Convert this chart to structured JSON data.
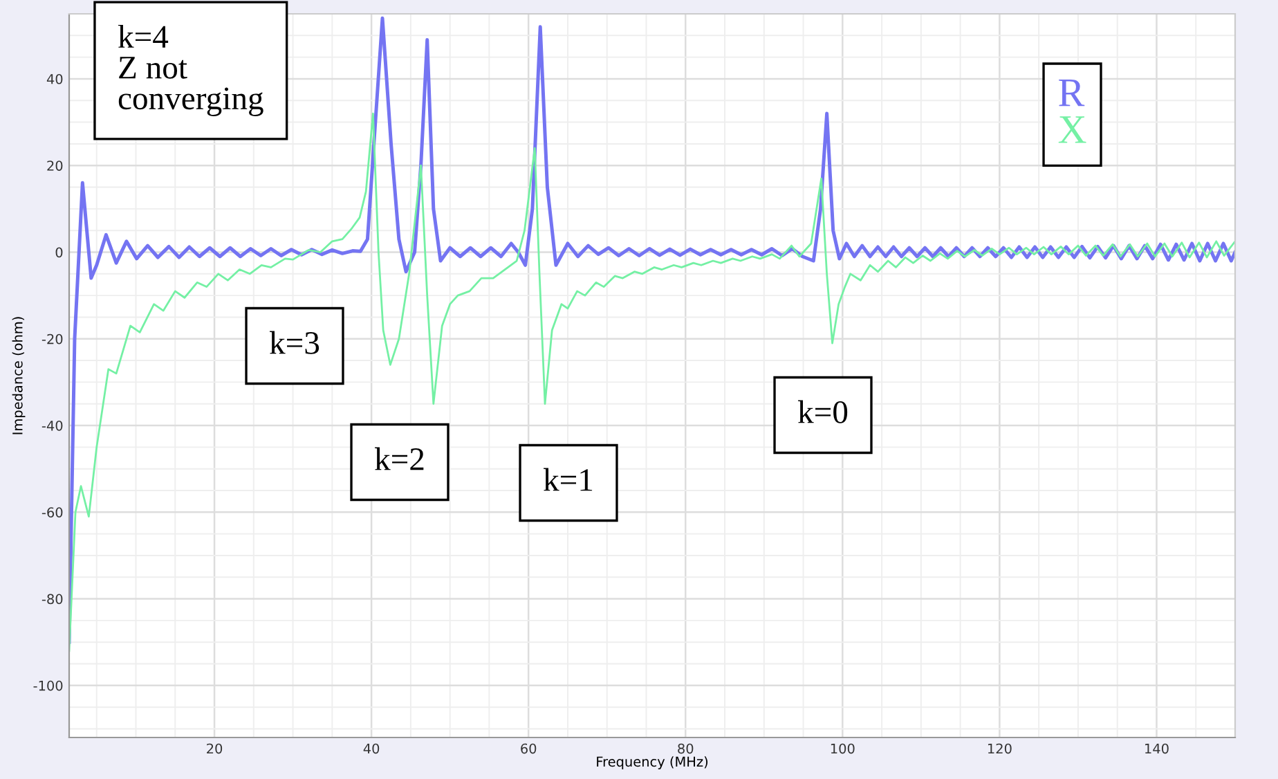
{
  "chart_data": {
    "type": "line",
    "xlabel": "Frequency (MHz)",
    "ylabel": "Impedance (ohm)",
    "xlim": [
      1.5,
      150
    ],
    "ylim": [
      -112,
      55
    ],
    "xticks": [
      {
        "value": 5,
        "label": null
      },
      {
        "value": 10,
        "label": null
      },
      {
        "value": 15,
        "label": null
      },
      20,
      {
        "value": 25,
        "label": null
      },
      {
        "value": 30,
        "label": null
      },
      {
        "value": 35,
        "label": null
      },
      40,
      {
        "value": 45,
        "label": null
      },
      {
        "value": 50,
        "label": null
      },
      {
        "value": 55,
        "label": null
      },
      60,
      {
        "value": 65,
        "label": null
      },
      {
        "value": 70,
        "label": null
      },
      {
        "value": 75,
        "label": null
      },
      80,
      {
        "value": 85,
        "label": null
      },
      {
        "value": 90,
        "label": null
      },
      {
        "value": 95,
        "label": null
      },
      100,
      {
        "value": 105,
        "label": null
      },
      {
        "value": 110,
        "label": null
      },
      {
        "value": 115,
        "label": null
      },
      120,
      {
        "value": 125,
        "label": null
      },
      {
        "value": 130,
        "label": null
      },
      {
        "value": 135,
        "label": null
      },
      140,
      {
        "value": 145,
        "label": null
      }
    ],
    "yticks": [
      {
        "value": -110,
        "label": null
      },
      {
        "value": -105,
        "label": null
      },
      -100,
      {
        "value": -95,
        "label": null
      },
      {
        "value": -90,
        "label": null
      },
      {
        "value": -85,
        "label": null
      },
      -80,
      {
        "value": -75,
        "label": null
      },
      {
        "value": -70,
        "label": null
      },
      {
        "value": -65,
        "label": null
      },
      -60,
      {
        "value": -55,
        "label": null
      },
      {
        "value": -50,
        "label": null
      },
      {
        "value": -45,
        "label": null
      },
      -40,
      {
        "value": -35,
        "label": null
      },
      {
        "value": -30,
        "label": null
      },
      {
        "value": -25,
        "label": null
      },
      -20,
      {
        "value": -15,
        "label": null
      },
      {
        "value": -10,
        "label": null
      },
      {
        "value": -5,
        "label": null
      },
      0,
      {
        "value": 5,
        "label": null
      },
      {
        "value": 10,
        "label": null
      },
      {
        "value": 15,
        "label": null
      },
      20,
      {
        "value": 25,
        "label": null
      },
      {
        "value": 30,
        "label": null
      },
      {
        "value": 35,
        "label": null
      },
      40,
      {
        "value": 45,
        "label": null
      },
      {
        "value": 50,
        "label": null
      }
    ],
    "grid": true,
    "legend": "top right",
    "annotations": [
      "k=4\nZ not\nconverging",
      "k=3",
      "k=2",
      "k=1",
      "k=0"
    ],
    "series": [
      {
        "name": "R",
        "color": "#7474f2",
        "x": [
          1.5,
          2.2,
          3.2,
          4.3,
          5.0,
          6.2,
          7.5,
          8.8,
          10.1,
          11.5,
          12.8,
          14.2,
          15.5,
          16.8,
          18.1,
          19.4,
          20.7,
          22,
          23.3,
          24.6,
          25.9,
          27.2,
          28.5,
          29.8,
          31.1,
          32.4,
          33.7,
          35,
          36.3,
          37.6,
          38.6,
          39.5,
          40.5,
          41.4,
          42.5,
          43.5,
          44.4,
          45.5,
          46.3,
          47.1,
          47.9,
          48.8,
          50,
          51.3,
          52.6,
          53.9,
          55.2,
          56.5,
          57.8,
          58.7,
          59.6,
          60.5,
          61.5,
          62.4,
          63.5,
          65,
          66.3,
          67.6,
          68.9,
          70.2,
          71.5,
          72.8,
          74.1,
          75.4,
          76.7,
          78,
          79.3,
          80.6,
          81.9,
          83.2,
          84.5,
          85.8,
          87.1,
          88.4,
          89.7,
          91,
          92.3,
          93.6,
          94.9,
          96.3,
          97.2,
          98,
          98.8,
          99.6,
          100.5,
          101.5,
          102.5,
          103.5,
          104.5,
          105.5,
          106.5,
          107.5,
          108.5,
          109.5,
          110.5,
          111.5,
          112.5,
          113.5,
          114.5,
          115.5,
          116.5,
          117.5,
          118.5,
          119.5,
          120.5,
          121.5,
          122.5,
          123.5,
          124.5,
          125.5,
          126.5,
          127.5,
          128.5,
          129.5,
          130.5,
          131.5,
          132.5,
          133.5,
          134.5,
          135.5,
          136.5,
          137.5,
          138.5,
          139.5,
          140.5,
          141.5,
          142.5,
          143.5,
          144.5,
          145.5,
          146.5,
          147.5,
          148.5,
          149.5,
          150
        ],
        "values": [
          -90,
          -20,
          16,
          -6,
          -3,
          4,
          -2.5,
          2.5,
          -1.5,
          1.5,
          -1.2,
          1.3,
          -1.2,
          1.2,
          -1,
          1,
          -1,
          1,
          -1,
          0.8,
          -0.8,
          0.8,
          -0.8,
          0.6,
          -0.6,
          0.6,
          -0.5,
          0.5,
          -0.3,
          0.3,
          0.2,
          3,
          30,
          54,
          25,
          3,
          -4.5,
          0,
          20,
          49,
          10,
          -2,
          1,
          -1,
          1,
          -1,
          1,
          -1,
          2,
          0,
          -3,
          10,
          52,
          15,
          -3,
          2,
          -1,
          1.5,
          -0.5,
          1,
          -0.8,
          0.8,
          -0.8,
          0.8,
          -0.7,
          0.7,
          -0.7,
          0.7,
          -0.6,
          0.6,
          -0.6,
          0.6,
          -0.6,
          0.6,
          -0.6,
          0.8,
          -0.8,
          0.8,
          -1,
          -2,
          10,
          32,
          5,
          -1.5,
          2,
          -1,
          1.5,
          -1,
          1.2,
          -1,
          1.2,
          -1,
          1,
          -1,
          1,
          -1,
          1,
          -1,
          1,
          -1,
          1,
          -1,
          1,
          -1,
          1,
          -1.2,
          1.2,
          -1.2,
          1.2,
          -1.2,
          1.2,
          -1.2,
          1.2,
          -1.2,
          1.3,
          -1.3,
          1.3,
          -1.3,
          1.5,
          -1.5,
          1.5,
          -1.5,
          1.5,
          -1.5,
          1.8,
          -1.8,
          1.8,
          -1.8,
          2,
          -2,
          2,
          -2,
          2,
          -2,
          0
        ]
      },
      {
        "name": "X",
        "color": "#74f0a4",
        "x": [
          1.5,
          2.3,
          3,
          4,
          5,
          6.5,
          7.5,
          9.3,
          10.5,
          12.3,
          13.5,
          15,
          16.2,
          17.8,
          19,
          20.5,
          21.7,
          23.2,
          24.5,
          26,
          27.2,
          29,
          30,
          32,
          33.5,
          35,
          36.3,
          37.5,
          38.5,
          39.3,
          40.2,
          40.9,
          41.5,
          42.4,
          43.5,
          44.8,
          46.3,
          47.1,
          47.9,
          49,
          50,
          51,
          52.5,
          54,
          55.5,
          57,
          58.5,
          59.5,
          60.8,
          61.4,
          62.1,
          63,
          64.2,
          65,
          66.2,
          67.2,
          68.6,
          69.6,
          71,
          72,
          73.5,
          74.5,
          76,
          77,
          78.5,
          79.5,
          81,
          82,
          83.5,
          84.5,
          86,
          87,
          88.5,
          89.5,
          91,
          92,
          93.5,
          94.5,
          96,
          97.3,
          98,
          98.7,
          99.5,
          100.3,
          101,
          102.3,
          103.5,
          104.5,
          105.8,
          106.8,
          108,
          109,
          110.2,
          111.2,
          112.4,
          113.4,
          114.6,
          115.6,
          116.8,
          117.8,
          119,
          120,
          121.2,
          122.2,
          123.4,
          124.4,
          125.6,
          126.6,
          127.8,
          128.8,
          130,
          131,
          132.2,
          133.2,
          134.4,
          135.4,
          136.6,
          137.6,
          138.8,
          139.8,
          141,
          142,
          143.2,
          144.2,
          145.4,
          146.4,
          147.6,
          148.6,
          150
        ],
        "values": [
          -92,
          -60,
          -54,
          -61,
          -45,
          -27,
          -28,
          -17,
          -18.5,
          -12,
          -13.5,
          -9,
          -10.5,
          -7,
          -8,
          -5,
          -6.5,
          -4,
          -5,
          -3,
          -3.5,
          -1.5,
          -1.7,
          0.5,
          0,
          2.5,
          3,
          5.5,
          8,
          14,
          32,
          0,
          -18,
          -26,
          -20,
          -5,
          20,
          -10,
          -35,
          -17,
          -12,
          -10,
          -9,
          -6,
          -6,
          -4,
          -2,
          5,
          24,
          -5,
          -35,
          -18,
          -12,
          -13,
          -9,
          -10,
          -7,
          -8,
          -5.5,
          -6,
          -4.5,
          -5,
          -3.5,
          -4,
          -3,
          -3.5,
          -2.5,
          -3,
          -2,
          -2.5,
          -1.5,
          -2,
          -1,
          -1.5,
          -0.5,
          -1.5,
          1.5,
          -1,
          2,
          17,
          -5,
          -21,
          -12,
          -8,
          -5,
          -6.5,
          -3,
          -4.5,
          -2,
          -3.5,
          -1.2,
          -2.5,
          -0.8,
          -2,
          -0.3,
          -1.5,
          0.3,
          -1,
          0.5,
          -0.8,
          0.8,
          -0.5,
          1,
          -0.5,
          1,
          -0.5,
          1.2,
          -0.5,
          1.3,
          -0.5,
          1.5,
          -0.8,
          1.5,
          -0.8,
          1.8,
          -1,
          1.8,
          -1,
          2,
          -1,
          2,
          -1,
          2.2,
          -1.2,
          2.2,
          -1.2,
          2.5,
          -0.8,
          2.5
        ]
      }
    ]
  }
}
